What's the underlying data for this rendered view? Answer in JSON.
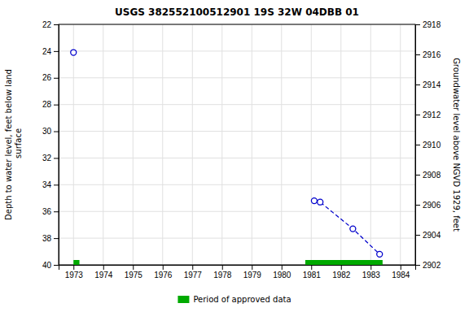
{
  "chart_data": {
    "type": "line",
    "title": "USGS 382552100512901 19S 32W 04DBB 01",
    "y_label": "Depth to water level, feet below land\n surface",
    "y2_label": "Groundwater level above NGVD 1929, feet",
    "xlim": [
      1972.5,
      1984.5
    ],
    "xticks": [
      1973,
      1974,
      1975,
      1976,
      1977,
      1978,
      1979,
      1980,
      1981,
      1982,
      1983,
      1984
    ],
    "ylim": [
      40,
      22
    ],
    "yticks": [
      22,
      24,
      26,
      28,
      30,
      32,
      34,
      36,
      38,
      40
    ],
    "y2lim": [
      2902,
      2918
    ],
    "y2ticks": [
      2918,
      2916,
      2914,
      2912,
      2910,
      2908,
      2906,
      2904,
      2902
    ],
    "grid": true,
    "legend": "bottom",
    "series": [
      {
        "type": "scatter",
        "marker": "circle",
        "color": "#0000cc",
        "x": [
          1973.0
        ],
        "values": [
          24.1
        ]
      },
      {
        "type": "line",
        "line_style": "dashed",
        "marker": "circle",
        "color": "#0000cc",
        "x": [
          1981.1,
          1981.3,
          1982.4,
          1983.3
        ],
        "values": [
          35.2,
          35.3,
          37.3,
          39.2
        ]
      },
      {
        "type": "span",
        "name": "Period of approved data",
        "color": "#00aa00",
        "x_start": [
          1973.0,
          1980.8
        ],
        "x_end": [
          1973.2,
          1983.4
        ]
      }
    ]
  }
}
